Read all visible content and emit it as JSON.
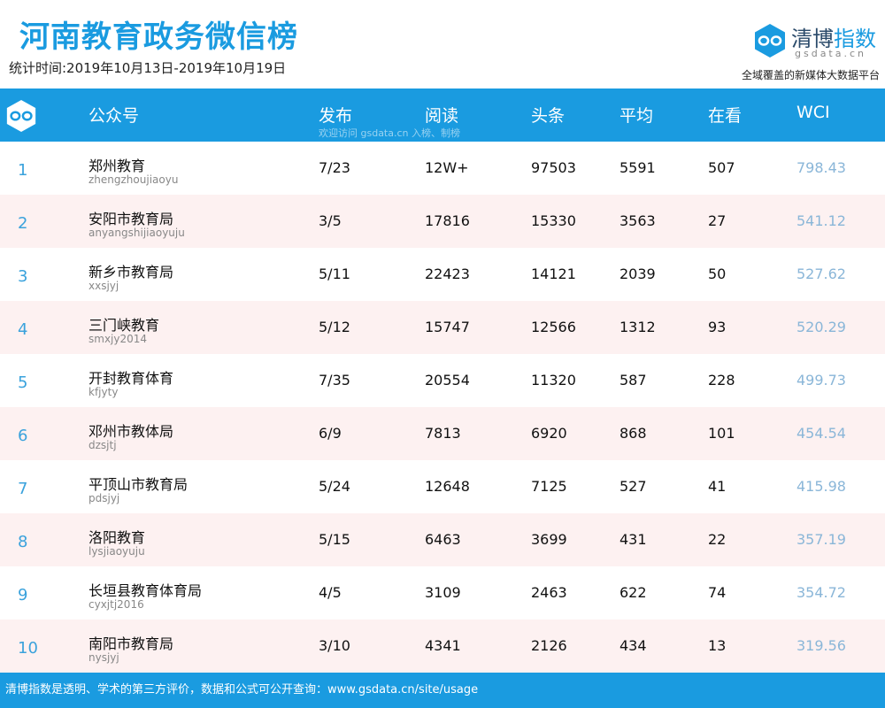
{
  "header": {
    "title": "河南教育政务微信榜",
    "period": "统计时间:2019年10月13日-2019年10月19日",
    "brand_name_1": "清博",
    "brand_name_2": "指数",
    "brand_domain": "gsdata.cn",
    "brand_slogan": "全域覆盖的新媒体大数据平台",
    "logo_icon": "infinity-logo-icon",
    "accent_color": "#1a9be0"
  },
  "table": {
    "columns": [
      "公众号",
      "发布",
      "阅读",
      "头条",
      "平均",
      "在看",
      "WCI"
    ],
    "watermark": "欢迎访问 gsdata.cn 入榜、制榜",
    "rows": [
      {
        "rank": "1",
        "name": "郑州教育",
        "account": "zhengzhoujiaoyu",
        "publish": "7/23",
        "read": "12W+",
        "headline": "97503",
        "avg": "5591",
        "watching": "507",
        "wci": "798.43"
      },
      {
        "rank": "2",
        "name": "安阳市教育局",
        "account": "anyangshijiaoyuju",
        "publish": "3/5",
        "read": "17816",
        "headline": "15330",
        "avg": "3563",
        "watching": "27",
        "wci": "541.12"
      },
      {
        "rank": "3",
        "name": "新乡市教育局",
        "account": "xxsjyj",
        "publish": "5/11",
        "read": "22423",
        "headline": "14121",
        "avg": "2039",
        "watching": "50",
        "wci": "527.62"
      },
      {
        "rank": "4",
        "name": "三门峡教育",
        "account": "smxjy2014",
        "publish": "5/12",
        "read": "15747",
        "headline": "12566",
        "avg": "1312",
        "watching": "93",
        "wci": "520.29"
      },
      {
        "rank": "5",
        "name": "开封教育体育",
        "account": "kfjyty",
        "publish": "7/35",
        "read": "20554",
        "headline": "11320",
        "avg": "587",
        "watching": "228",
        "wci": "499.73"
      },
      {
        "rank": "6",
        "name": "邓州市教体局",
        "account": "dzsjtj",
        "publish": "6/9",
        "read": "7813",
        "headline": "6920",
        "avg": "868",
        "watching": "101",
        "wci": "454.54"
      },
      {
        "rank": "7",
        "name": "平顶山市教育局",
        "account": "pdsjyj",
        "publish": "5/24",
        "read": "12648",
        "headline": "7125",
        "avg": "527",
        "watching": "41",
        "wci": "415.98"
      },
      {
        "rank": "8",
        "name": "洛阳教育",
        "account": "lysjiaoyuju",
        "publish": "5/15",
        "read": "6463",
        "headline": "3699",
        "avg": "431",
        "watching": "22",
        "wci": "357.19"
      },
      {
        "rank": "9",
        "name": "长垣县教育体育局",
        "account": "cyxjtj2016",
        "publish": "4/5",
        "read": "3109",
        "headline": "2463",
        "avg": "622",
        "watching": "74",
        "wci": "354.72"
      },
      {
        "rank": "10",
        "name": "南阳市教育局",
        "account": "nysjyj",
        "publish": "3/10",
        "read": "4341",
        "headline": "2126",
        "avg": "434",
        "watching": "13",
        "wci": "319.56"
      }
    ]
  },
  "footer": {
    "text": "清博指数是透明、学术的第三方评价，数据和公式可公开查询：www.gsdata.cn/site/usage"
  }
}
